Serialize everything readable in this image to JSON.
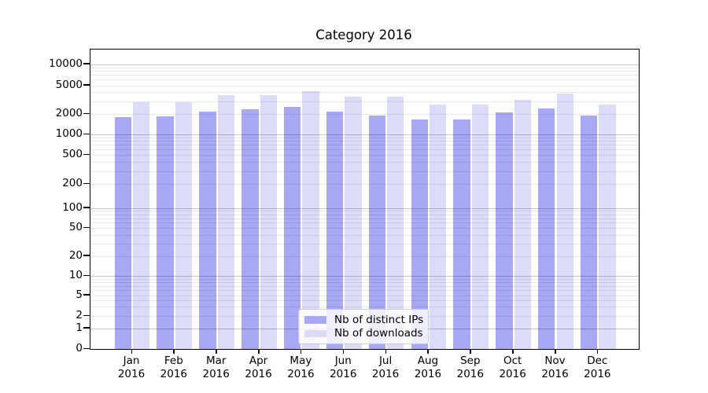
{
  "chart_data": {
    "type": "bar",
    "title": "Category 2016",
    "yscale": "symlog",
    "grid": {
      "axis": "y",
      "which": "both"
    },
    "legend": {
      "position": "lower center"
    },
    "categories": [
      {
        "month": "Jan",
        "year": "2016"
      },
      {
        "month": "Feb",
        "year": "2016"
      },
      {
        "month": "Mar",
        "year": "2016"
      },
      {
        "month": "Apr",
        "year": "2016"
      },
      {
        "month": "May",
        "year": "2016"
      },
      {
        "month": "Jun",
        "year": "2016"
      },
      {
        "month": "Jul",
        "year": "2016"
      },
      {
        "month": "Aug",
        "year": "2016"
      },
      {
        "month": "Sep",
        "year": "2016"
      },
      {
        "month": "Oct",
        "year": "2016"
      },
      {
        "month": "Nov",
        "year": "2016"
      },
      {
        "month": "Dec",
        "year": "2016"
      }
    ],
    "series": [
      {
        "name": "Nb of distinct IPs",
        "color": "#a8a8f4",
        "values": [
          1800,
          1850,
          2150,
          2300,
          2500,
          2150,
          1900,
          1650,
          1650,
          2100,
          2400,
          1900
        ]
      },
      {
        "name": "Nb of downloads",
        "color": "#dcdcf9",
        "values": [
          2950,
          2900,
          3650,
          3700,
          4150,
          3450,
          3450,
          2700,
          2700,
          3150,
          3800,
          2700
        ]
      }
    ],
    "ytick_values": [
      0,
      1,
      2,
      5,
      10,
      20,
      50,
      100,
      200,
      500,
      1000,
      2000,
      5000,
      10000
    ],
    "ytick_labels": [
      "0",
      "1",
      "2",
      "5",
      "10",
      "20",
      "50",
      "100",
      "200",
      "500",
      "1000",
      "2000",
      "5000",
      "10000"
    ],
    "ylim": [
      0,
      13500
    ]
  }
}
